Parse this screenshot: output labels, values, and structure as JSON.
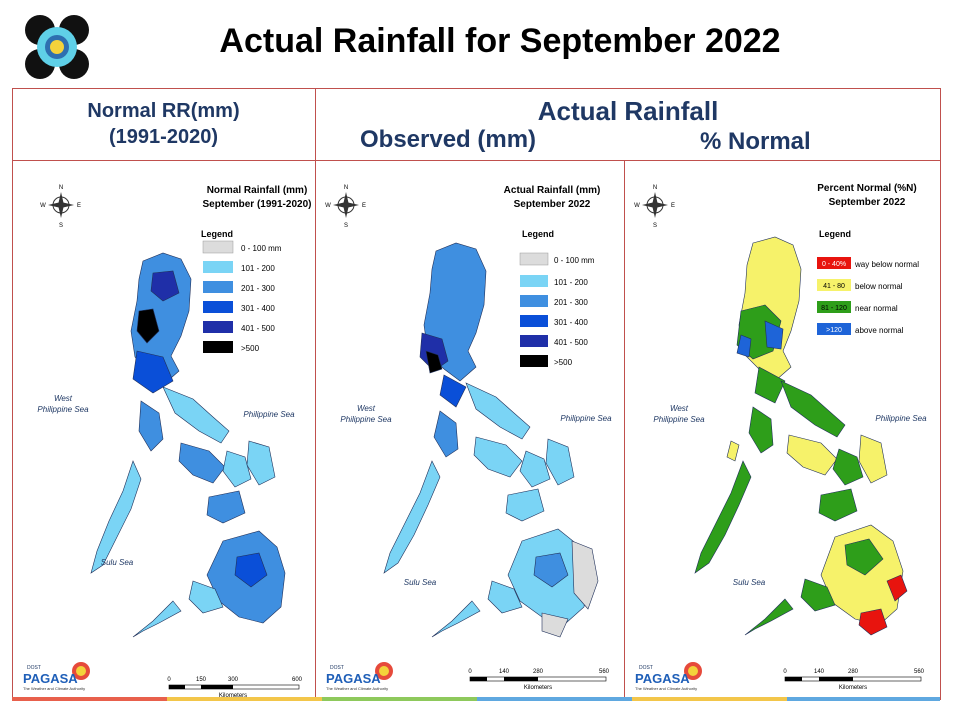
{
  "title": "Actual Rainfall for September 2022",
  "header_left": {
    "line1": "Normal RR(mm)",
    "line2": "(1991-2020)"
  },
  "header_right": {
    "main": "Actual Rainfall",
    "observed": "Observed (mm)",
    "percent": "% Normal"
  },
  "compass": {
    "n": "N",
    "s": "S",
    "e": "E",
    "w": "W"
  },
  "sea_labels": {
    "west1": "West",
    "west2": "Philippine Sea",
    "east": "Philippine Sea",
    "sulu": "Sulu Sea"
  },
  "panels": [
    {
      "map_title1": "Normal Rainfall (mm)",
      "map_title2": "September (1991-2020)",
      "legend_title": "Legend",
      "legend": [
        {
          "label": "0 - 100 mm",
          "color": "#dcdcdc"
        },
        {
          "label": "101 - 200",
          "color": "#7ad4f5"
        },
        {
          "label": "201 - 300",
          "color": "#3f8fe0"
        },
        {
          "label": "301 - 400",
          "color": "#0a4fd8"
        },
        {
          "label": "401 - 500",
          "color": "#1f2fa8"
        },
        {
          "label": ">500",
          "color": "#000000"
        }
      ],
      "scale_labels": [
        "0",
        "150",
        "300",
        "600"
      ],
      "scale_unit": "Kilometers"
    },
    {
      "map_title1": "Actual Rainfall (mm)",
      "map_title2": "September 2022",
      "legend_title": "Legend",
      "legend": [
        {
          "label": "0 - 100 mm",
          "color": "#dcdcdc"
        },
        {
          "label": "101 - 200",
          "color": "#7ad4f5"
        },
        {
          "label": "201 - 300",
          "color": "#3f8fe0"
        },
        {
          "label": "301 - 400",
          "color": "#0a4fd8"
        },
        {
          "label": "401 - 500",
          "color": "#1f2fa8"
        },
        {
          "label": ">500",
          "color": "#000000"
        }
      ],
      "scale_labels": [
        "0",
        "140",
        "280",
        "560"
      ],
      "scale_unit": "Kilometers"
    },
    {
      "map_title1": "Percent Normal (%N)",
      "map_title2": "September 2022",
      "legend_title": "Legend",
      "legend": [
        {
          "label": "way below normal",
          "swatch": "0 - 40%",
          "color": "#e8140e"
        },
        {
          "label": "below normal",
          "swatch": "41 - 80",
          "color": "#f6f26a"
        },
        {
          "label": "near normal",
          "swatch": "81 - 120",
          "color": "#2e9e1a"
        },
        {
          "label": "above normal",
          "swatch": ">120",
          "color": "#1e64d8"
        }
      ],
      "scale_labels": [
        "0",
        "140",
        "280",
        "560"
      ],
      "scale_unit": "Kilometers"
    }
  ],
  "footer": {
    "brand": "PAGASA",
    "tag": "DOST",
    "sub": "The Weather and Climate Authority"
  },
  "colors": {
    "frame": "#c0504d",
    "header_text": "#1f3864"
  }
}
